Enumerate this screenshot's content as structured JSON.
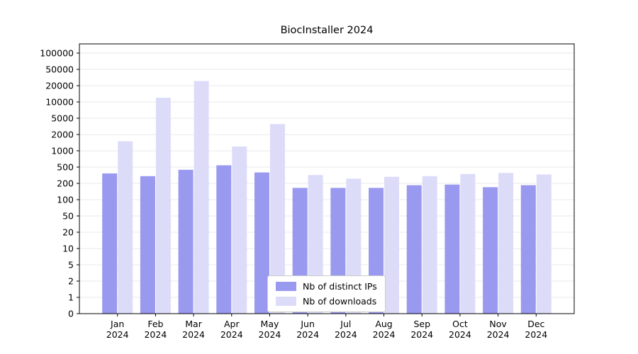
{
  "chart_data": {
    "type": "bar",
    "title": "BiocInstaller 2024",
    "year_label": "2024",
    "categories": [
      "Jan",
      "Feb",
      "Mar",
      "Apr",
      "May",
      "Jun",
      "Jul",
      "Aug",
      "Sep",
      "Oct",
      "Nov",
      "Dec"
    ],
    "series": [
      {
        "name": "Nb of distinct IPs",
        "color": "#9999f0",
        "values": [
          350,
          300,
          430,
          540,
          370,
          165,
          165,
          165,
          185,
          190,
          170,
          185
        ]
      },
      {
        "name": "Nb of downloads",
        "color": "#dcdcf9",
        "values": [
          1500,
          12000,
          26000,
          1200,
          3600,
          320,
          260,
          290,
          300,
          340,
          360,
          330
        ]
      }
    ],
    "y_ticks": [
      0,
      1,
      2,
      5,
      10,
      20,
      50,
      100,
      200,
      500,
      1000,
      2000,
      5000,
      10000,
      20000,
      50000,
      100000
    ],
    "ylim": [
      0,
      100000
    ],
    "xlabel": "",
    "ylabel": "",
    "grid": true,
    "grid_color": "#e8e8e8",
    "axis_color": "#000000",
    "legend_position": "lower center"
  }
}
